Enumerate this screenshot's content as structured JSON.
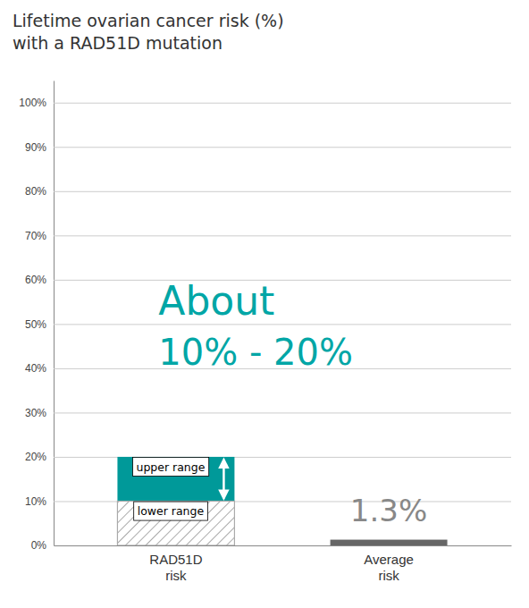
{
  "chart_data": {
    "type": "bar",
    "title": "Lifetime ovarian cancer risk (%)",
    "subtitle": "with a RAD51D mutation",
    "categories": [
      "RAD51D\nrisk",
      "Average\nrisk"
    ],
    "values": [
      20,
      1.3
    ],
    "lower_values": [
      10,
      null
    ],
    "colors": [
      "#009999",
      "#666666"
    ],
    "annotations": [
      {
        "text": "upper range"
      },
      {
        "text": "lower range"
      },
      {
        "text": "About",
        "color": "#00A6A6"
      },
      {
        "text": "10% - 20%",
        "color": "#00A6A6"
      },
      {
        "text": "1.3%",
        "color": "#888888"
      }
    ],
    "ylim": [
      0,
      105
    ],
    "yticks": [
      {
        "value": 0,
        "label": "0%"
      },
      {
        "value": 10,
        "label": "10%"
      },
      {
        "value": 20,
        "label": "20%"
      },
      {
        "value": 30,
        "label": "30%"
      },
      {
        "value": 40,
        "label": "40%"
      },
      {
        "value": 50,
        "label": "50%"
      },
      {
        "value": 60,
        "label": "60%"
      },
      {
        "value": 70,
        "label": "70%"
      },
      {
        "value": 80,
        "label": "80%"
      },
      {
        "value": 90,
        "label": "90%"
      },
      {
        "value": 100,
        "label": "100%"
      }
    ],
    "grid": true
  }
}
